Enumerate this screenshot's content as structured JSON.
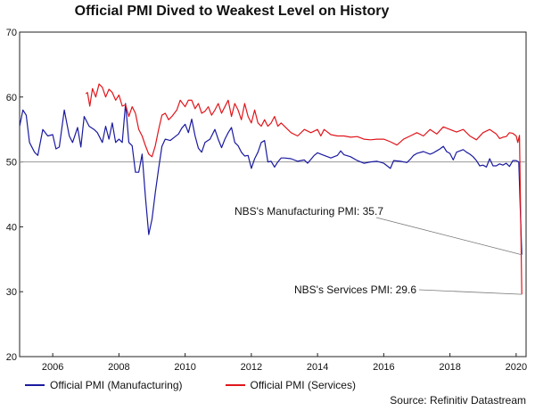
{
  "chart_data": {
    "type": "line",
    "title": "Official PMI Dived to Weakest Level on History",
    "xlabel": "",
    "ylabel": "",
    "ylim": [
      20,
      70
    ],
    "xlim": [
      2005.0,
      2020.3
    ],
    "yticks": [
      20,
      30,
      40,
      50,
      60,
      70
    ],
    "xticks": [
      "2006",
      "2008",
      "2010",
      "2012",
      "2014",
      "2016",
      "2018",
      "2020"
    ],
    "reference_line": 50,
    "grid": false,
    "legend_position": "bottom",
    "series": [
      {
        "name": "Official PMI (Manufacturing)",
        "color": "#1a1aa0",
        "points": [
          [
            2005.0,
            55.5
          ],
          [
            2005.1,
            58.0
          ],
          [
            2005.2,
            57.2
          ],
          [
            2005.3,
            53.0
          ],
          [
            2005.45,
            51.5
          ],
          [
            2005.55,
            51.0
          ],
          [
            2005.7,
            55.0
          ],
          [
            2005.85,
            54.0
          ],
          [
            2006.0,
            54.2
          ],
          [
            2006.1,
            52.0
          ],
          [
            2006.2,
            52.3
          ],
          [
            2006.35,
            58.0
          ],
          [
            2006.5,
            54.0
          ],
          [
            2006.6,
            53.0
          ],
          [
            2006.75,
            55.3
          ],
          [
            2006.85,
            52.3
          ],
          [
            2006.95,
            57.0
          ],
          [
            2007.1,
            55.5
          ],
          [
            2007.25,
            55.0
          ],
          [
            2007.35,
            54.5
          ],
          [
            2007.5,
            53.0
          ],
          [
            2007.6,
            55.5
          ],
          [
            2007.7,
            53.5
          ],
          [
            2007.8,
            56.0
          ],
          [
            2007.9,
            53.0
          ],
          [
            2008.0,
            53.5
          ],
          [
            2008.1,
            53.0
          ],
          [
            2008.2,
            59.0
          ],
          [
            2008.3,
            53.0
          ],
          [
            2008.4,
            52.5
          ],
          [
            2008.5,
            48.4
          ],
          [
            2008.6,
            48.4
          ],
          [
            2008.7,
            51.2
          ],
          [
            2008.8,
            44.6
          ],
          [
            2008.9,
            38.8
          ],
          [
            2009.0,
            41.2
          ],
          [
            2009.1,
            45.3
          ],
          [
            2009.2,
            49.0
          ],
          [
            2009.3,
            52.4
          ],
          [
            2009.4,
            53.5
          ],
          [
            2009.55,
            53.3
          ],
          [
            2009.7,
            53.9
          ],
          [
            2009.8,
            54.3
          ],
          [
            2009.9,
            55.2
          ],
          [
            2010.0,
            55.8
          ],
          [
            2010.1,
            54.5
          ],
          [
            2010.2,
            56.6
          ],
          [
            2010.3,
            54.0
          ],
          [
            2010.4,
            52.1
          ],
          [
            2010.5,
            51.5
          ],
          [
            2010.6,
            53.0
          ],
          [
            2010.75,
            53.5
          ],
          [
            2010.9,
            55.0
          ],
          [
            2011.0,
            53.5
          ],
          [
            2011.1,
            52.2
          ],
          [
            2011.2,
            53.5
          ],
          [
            2011.3,
            54.5
          ],
          [
            2011.4,
            55.3
          ],
          [
            2011.5,
            53.0
          ],
          [
            2011.6,
            52.5
          ],
          [
            2011.7,
            51.5
          ],
          [
            2011.8,
            50.9
          ],
          [
            2011.9,
            51.0
          ],
          [
            2012.0,
            49.0
          ],
          [
            2012.1,
            50.5
          ],
          [
            2012.2,
            51.5
          ],
          [
            2012.3,
            53.0
          ],
          [
            2012.4,
            53.3
          ],
          [
            2012.5,
            50.0
          ],
          [
            2012.6,
            50.1
          ],
          [
            2012.7,
            49.2
          ],
          [
            2012.8,
            50.0
          ],
          [
            2012.9,
            50.6
          ],
          [
            2013.0,
            50.6
          ],
          [
            2013.2,
            50.5
          ],
          [
            2013.4,
            50.1
          ],
          [
            2013.6,
            50.3
          ],
          [
            2013.7,
            49.8
          ],
          [
            2013.8,
            50.4
          ],
          [
            2013.9,
            51.0
          ],
          [
            2014.0,
            51.4
          ],
          [
            2014.2,
            51.0
          ],
          [
            2014.4,
            50.6
          ],
          [
            2014.6,
            51.0
          ],
          [
            2014.7,
            51.7
          ],
          [
            2014.8,
            51.1
          ],
          [
            2015.0,
            50.8
          ],
          [
            2015.2,
            50.2
          ],
          [
            2015.4,
            49.8
          ],
          [
            2015.6,
            50.0
          ],
          [
            2015.8,
            50.1
          ],
          [
            2016.0,
            49.8
          ],
          [
            2016.1,
            49.4
          ],
          [
            2016.2,
            49.0
          ],
          [
            2016.3,
            50.2
          ],
          [
            2016.5,
            50.1
          ],
          [
            2016.7,
            49.9
          ],
          [
            2016.8,
            50.4
          ],
          [
            2016.9,
            51.0
          ],
          [
            2017.0,
            51.3
          ],
          [
            2017.2,
            51.6
          ],
          [
            2017.4,
            51.2
          ],
          [
            2017.5,
            51.4
          ],
          [
            2017.6,
            51.7
          ],
          [
            2017.7,
            52.0
          ],
          [
            2017.8,
            52.4
          ],
          [
            2017.9,
            51.6
          ],
          [
            2018.0,
            51.3
          ],
          [
            2018.1,
            50.3
          ],
          [
            2018.2,
            51.5
          ],
          [
            2018.4,
            51.9
          ],
          [
            2018.5,
            51.5
          ],
          [
            2018.6,
            51.2
          ],
          [
            2018.7,
            50.8
          ],
          [
            2018.8,
            50.2
          ],
          [
            2018.9,
            49.4
          ],
          [
            2019.0,
            49.5
          ],
          [
            2019.1,
            49.2
          ],
          [
            2019.2,
            50.5
          ],
          [
            2019.3,
            49.4
          ],
          [
            2019.4,
            49.4
          ],
          [
            2019.5,
            49.7
          ],
          [
            2019.6,
            49.5
          ],
          [
            2019.7,
            49.8
          ],
          [
            2019.8,
            49.3
          ],
          [
            2019.9,
            50.2
          ],
          [
            2020.0,
            50.2
          ],
          [
            2020.08,
            50.0
          ],
          [
            2020.17,
            35.7
          ]
        ]
      },
      {
        "name": "Official PMI (Services)",
        "color": "#e0161c",
        "points": [
          [
            2007.0,
            60.5
          ],
          [
            2007.05,
            60.7
          ],
          [
            2007.12,
            58.6
          ],
          [
            2007.2,
            61.3
          ],
          [
            2007.3,
            60.0
          ],
          [
            2007.4,
            62.0
          ],
          [
            2007.5,
            61.5
          ],
          [
            2007.6,
            60.0
          ],
          [
            2007.7,
            61.2
          ],
          [
            2007.8,
            60.7
          ],
          [
            2007.9,
            59.5
          ],
          [
            2008.0,
            60.3
          ],
          [
            2008.1,
            58.6
          ],
          [
            2008.2,
            58.8
          ],
          [
            2008.3,
            57.0
          ],
          [
            2008.4,
            58.5
          ],
          [
            2008.5,
            57.5
          ],
          [
            2008.6,
            55.0
          ],
          [
            2008.7,
            54.0
          ],
          [
            2008.8,
            52.5
          ],
          [
            2008.9,
            51.2
          ],
          [
            2009.0,
            50.8
          ],
          [
            2009.1,
            52.5
          ],
          [
            2009.2,
            55.0
          ],
          [
            2009.3,
            57.2
          ],
          [
            2009.4,
            57.5
          ],
          [
            2009.5,
            56.5
          ],
          [
            2009.6,
            57.0
          ],
          [
            2009.75,
            58.0
          ],
          [
            2009.85,
            59.5
          ],
          [
            2010.0,
            58.5
          ],
          [
            2010.1,
            59.5
          ],
          [
            2010.2,
            59.5
          ],
          [
            2010.3,
            58.2
          ],
          [
            2010.4,
            59.0
          ],
          [
            2010.5,
            57.5
          ],
          [
            2010.6,
            57.8
          ],
          [
            2010.7,
            58.5
          ],
          [
            2010.8,
            57.2
          ],
          [
            2010.9,
            58.0
          ],
          [
            2011.0,
            59.0
          ],
          [
            2011.1,
            57.5
          ],
          [
            2011.2,
            58.5
          ],
          [
            2011.3,
            59.5
          ],
          [
            2011.4,
            57.0
          ],
          [
            2011.5,
            59.0
          ],
          [
            2011.6,
            58.0
          ],
          [
            2011.7,
            56.5
          ],
          [
            2011.8,
            59.0
          ],
          [
            2011.9,
            57.0
          ],
          [
            2012.0,
            56.0
          ],
          [
            2012.1,
            58.0
          ],
          [
            2012.2,
            56.0
          ],
          [
            2012.3,
            55.5
          ],
          [
            2012.4,
            56.5
          ],
          [
            2012.5,
            55.5
          ],
          [
            2012.6,
            56.0
          ],
          [
            2012.7,
            57.0
          ],
          [
            2012.8,
            55.5
          ],
          [
            2012.9,
            56.0
          ],
          [
            2013.0,
            55.5
          ],
          [
            2013.2,
            54.5
          ],
          [
            2013.4,
            54.0
          ],
          [
            2013.6,
            55.0
          ],
          [
            2013.8,
            54.5
          ],
          [
            2014.0,
            55.0
          ],
          [
            2014.1,
            54.0
          ],
          [
            2014.2,
            55.0
          ],
          [
            2014.4,
            54.2
          ],
          [
            2014.6,
            54.0
          ],
          [
            2014.8,
            54.0
          ],
          [
            2015.0,
            53.8
          ],
          [
            2015.2,
            53.9
          ],
          [
            2015.4,
            53.5
          ],
          [
            2015.6,
            53.4
          ],
          [
            2015.8,
            53.5
          ],
          [
            2016.0,
            53.5
          ],
          [
            2016.2,
            53.1
          ],
          [
            2016.4,
            52.6
          ],
          [
            2016.6,
            53.5
          ],
          [
            2016.8,
            54.0
          ],
          [
            2017.0,
            54.5
          ],
          [
            2017.2,
            54.0
          ],
          [
            2017.4,
            55.0
          ],
          [
            2017.6,
            54.3
          ],
          [
            2017.8,
            55.4
          ],
          [
            2018.0,
            55.0
          ],
          [
            2018.2,
            54.6
          ],
          [
            2018.4,
            55.0
          ],
          [
            2018.6,
            54.0
          ],
          [
            2018.8,
            53.4
          ],
          [
            2019.0,
            54.5
          ],
          [
            2019.2,
            55.0
          ],
          [
            2019.4,
            54.3
          ],
          [
            2019.5,
            53.6
          ],
          [
            2019.6,
            53.8
          ],
          [
            2019.7,
            53.9
          ],
          [
            2019.8,
            54.5
          ],
          [
            2019.9,
            54.4
          ],
          [
            2020.0,
            54.0
          ],
          [
            2020.05,
            53.0
          ],
          [
            2020.1,
            54.1
          ],
          [
            2020.17,
            29.6
          ]
        ]
      }
    ],
    "annotations": [
      {
        "text": "NBS's Manufacturing PMI: 35.7",
        "x": 2020.17,
        "y": 35.7
      },
      {
        "text": "NBS's Services PMI: 29.6",
        "x": 2020.17,
        "y": 29.6
      }
    ],
    "source": "Source: Refinitiv Datastream"
  }
}
